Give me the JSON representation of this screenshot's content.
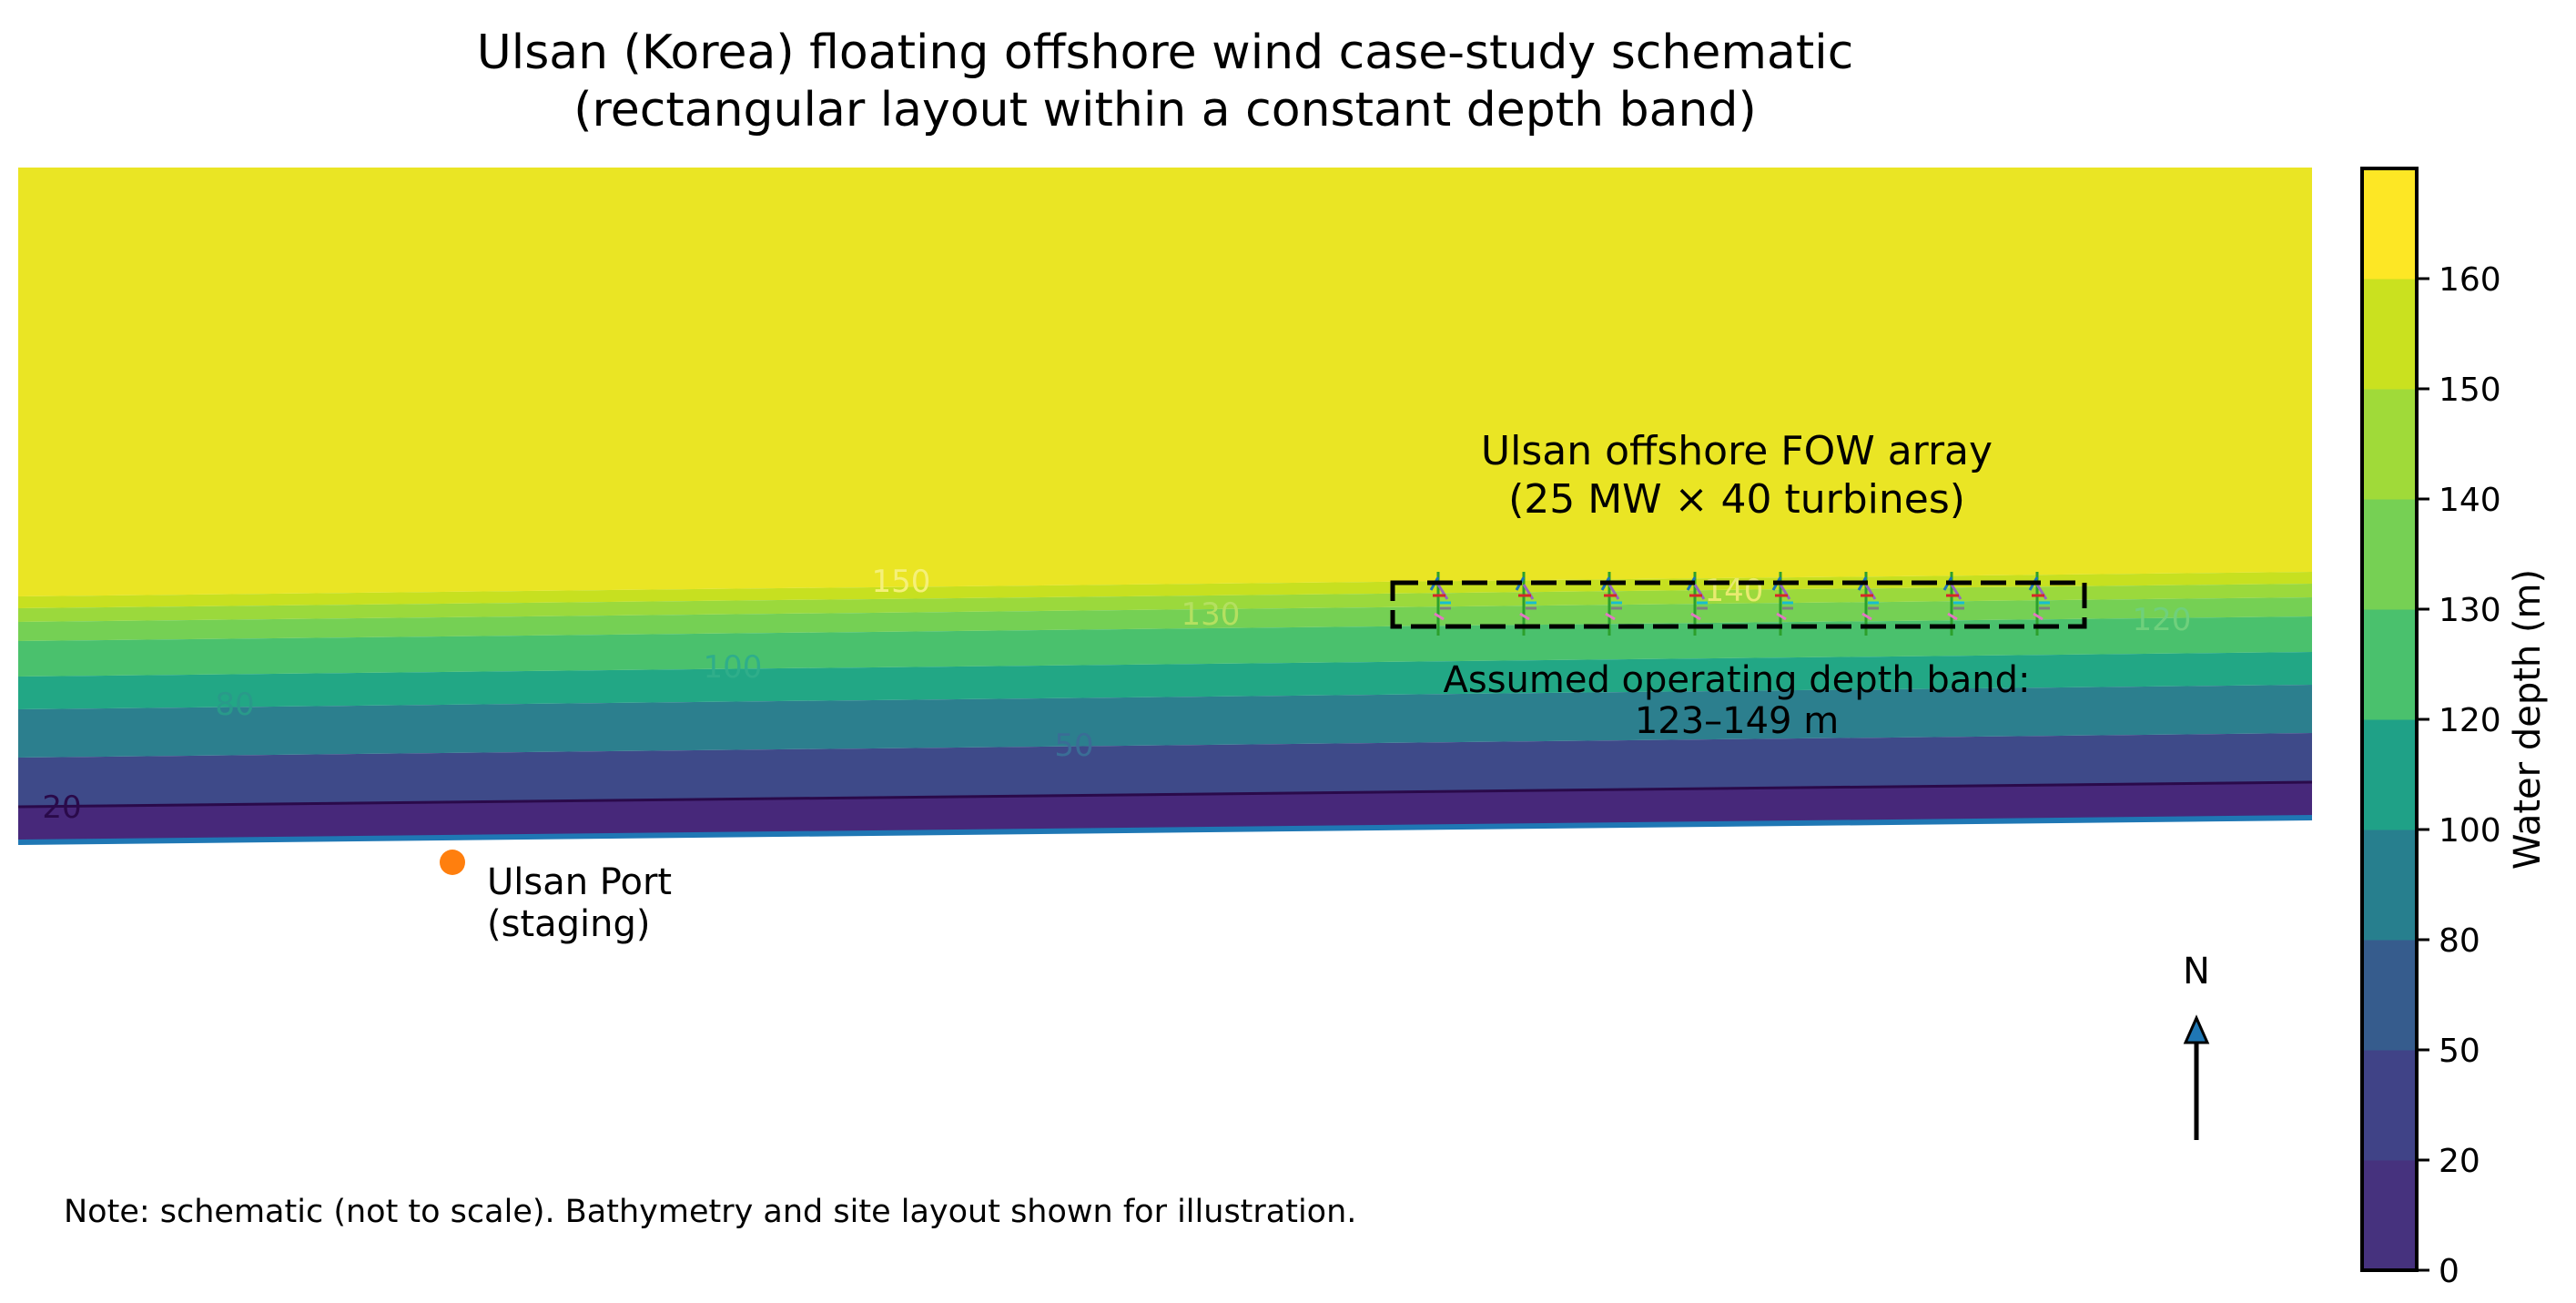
{
  "title": {
    "line1": "Ulsan (Korea) floating offshore wind case-study schematic",
    "line2": "(rectangular layout within a constant depth band)"
  },
  "array": {
    "label_line1": "Ulsan offshore FOW array",
    "label_line2": "(25 MW × 40 turbines)",
    "turbines_shown": 8,
    "depth_band_line1": "Assumed operating depth band:",
    "depth_band_line2": "123–149 m"
  },
  "port": {
    "label_line1": "Ulsan Port",
    "label_line2": "(staging)",
    "color": "#ff7f0e"
  },
  "north": {
    "label": "N"
  },
  "note": "Note: schematic (not to scale). Bathymetry and site layout shown for illustration.",
  "colorbar": {
    "label": "Water depth (m)",
    "ticks": [
      "0",
      "20",
      "50",
      "80",
      "100",
      "120",
      "130",
      "140",
      "150",
      "160"
    ],
    "colors": [
      "#46327e",
      "#404387",
      "#365c8d",
      "#277f8e",
      "#1fa187",
      "#4ac16d",
      "#76d054",
      "#a0da39",
      "#cae11f",
      "#fde725"
    ]
  },
  "contours": {
    "labels": [
      "150",
      "140",
      "130",
      "120",
      "100",
      "80",
      "50",
      "20"
    ],
    "coast_color": "#1f77b4"
  }
}
